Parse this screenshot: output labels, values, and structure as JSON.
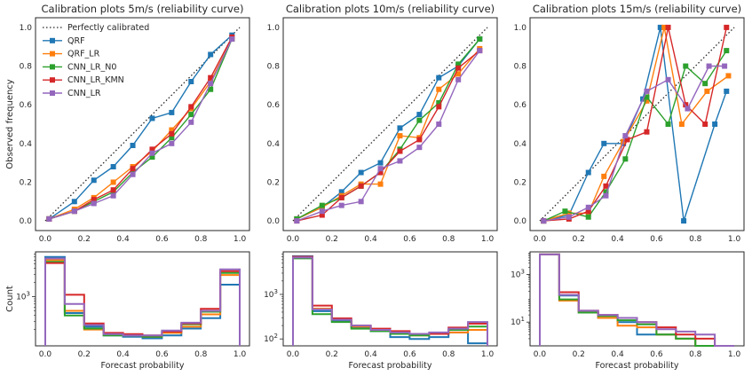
{
  "chart_data": {
    "type": "line",
    "model_colors": {
      "QRF": "#1f77b4",
      "QRF_LR": "#ff7f0e",
      "CNN_LR_N0": "#2ca02c",
      "CNN_LR_KMN": "#d62728",
      "CNN_LR": "#9467bd"
    },
    "reference": {
      "label": "Perfectly calibrated",
      "color": "#262626"
    },
    "legend_order": [
      "QRF",
      "QRF_LR",
      "CNN_LR_N0",
      "CNN_LR_KMN",
      "CNN_LR"
    ],
    "common": {
      "top_ylabel": "Observed frequency",
      "bottom_ylabel": "Count",
      "xlabel": "Forecast probability",
      "xticks": [
        0.0,
        0.2,
        0.4,
        0.6,
        0.8,
        1.0
      ],
      "xtick_labels": [
        "0.0",
        "0.2",
        "0.4",
        "0.6",
        "0.8",
        "1.0"
      ],
      "yticks": [
        0.0,
        0.2,
        0.4,
        0.6,
        0.8,
        1.0
      ],
      "ytick_labels": [
        "0.0",
        "0.2",
        "0.4",
        "0.6",
        "0.8",
        "1.0"
      ],
      "xlim": [
        -0.05,
        1.05
      ],
      "ylim": [
        -0.05,
        1.05
      ]
    },
    "panels": [
      {
        "title": "Calibration plots 5m/s  (reliability curve)",
        "calibration": {
          "QRF": {
            "x": [
              0.02,
              0.15,
              0.25,
              0.35,
              0.45,
              0.55,
              0.65,
              0.75,
              0.85,
              0.96
            ],
            "y": [
              0.01,
              0.1,
              0.21,
              0.28,
              0.39,
              0.53,
              0.56,
              0.72,
              0.86,
              0.96
            ]
          },
          "QRF_LR": {
            "x": [
              0.02,
              0.15,
              0.25,
              0.35,
              0.45,
              0.55,
              0.65,
              0.75,
              0.85,
              0.96
            ],
            "y": [
              0.01,
              0.06,
              0.12,
              0.2,
              0.28,
              0.36,
              0.47,
              0.58,
              0.72,
              0.94
            ]
          },
          "CNN_LR_N0": {
            "x": [
              0.02,
              0.15,
              0.25,
              0.35,
              0.45,
              0.55,
              0.65,
              0.75,
              0.85,
              0.96
            ],
            "y": [
              0.01,
              0.05,
              0.1,
              0.15,
              0.25,
              0.33,
              0.43,
              0.55,
              0.68,
              0.94
            ]
          },
          "CNN_LR_KMN": {
            "x": [
              0.02,
              0.15,
              0.25,
              0.35,
              0.45,
              0.55,
              0.65,
              0.75,
              0.85,
              0.96
            ],
            "y": [
              0.01,
              0.05,
              0.11,
              0.16,
              0.27,
              0.37,
              0.45,
              0.59,
              0.74,
              0.95
            ]
          },
          "CNN_LR": {
            "x": [
              0.02,
              0.15,
              0.25,
              0.35,
              0.45,
              0.55,
              0.65,
              0.75,
              0.85,
              0.96
            ],
            "y": [
              0.01,
              0.05,
              0.09,
              0.13,
              0.24,
              0.35,
              0.4,
              0.51,
              0.71,
              0.94
            ]
          }
        },
        "hist": {
          "yscale": "log",
          "ylim": [
            90,
            9000
          ],
          "yticks": [
            1000
          ],
          "ytick_labels": [
            "10^3"
          ],
          "minor_ticks": [
            200,
            300,
            400,
            500,
            600,
            700,
            800,
            900,
            2000,
            3000,
            4000,
            5000,
            6000,
            7000,
            8000
          ],
          "counts": {
            "QRF": [
              7000,
              450,
              230,
              150,
              140,
              130,
              150,
              210,
              350,
              1800
            ],
            "QRF_LR": [
              6000,
              500,
              200,
              160,
              150,
              140,
              170,
              230,
              420,
              2900
            ],
            "CNN_LR_N0": [
              5500,
              400,
              210,
              150,
              150,
              140,
              180,
              260,
              480,
              3200
            ],
            "CNN_LR_KMN": [
              5200,
              1100,
              270,
              170,
              160,
              150,
              180,
              270,
              550,
              3500
            ],
            "CNN_LR": [
              6500,
              700,
              250,
              160,
              150,
              150,
              190,
              280,
              500,
              3800
            ]
          }
        }
      },
      {
        "title": "Calibration plots 10m/s  (reliability curve)",
        "calibration": {
          "QRF": {
            "x": [
              0.02,
              0.15,
              0.25,
              0.35,
              0.45,
              0.55,
              0.65,
              0.75,
              0.85,
              0.96
            ],
            "y": [
              0.01,
              0.07,
              0.15,
              0.25,
              0.3,
              0.48,
              0.55,
              0.74,
              0.8,
              0.94
            ]
          },
          "QRF_LR": {
            "x": [
              0.02,
              0.15,
              0.25,
              0.35,
              0.45,
              0.55,
              0.65,
              0.75,
              0.85,
              0.96
            ],
            "y": [
              0.01,
              0.07,
              0.13,
              0.19,
              0.19,
              0.44,
              0.43,
              0.68,
              0.76,
              0.89
            ]
          },
          "CNN_LR_N0": {
            "x": [
              0.02,
              0.15,
              0.25,
              0.35,
              0.45,
              0.55,
              0.65,
              0.75,
              0.85,
              0.96
            ],
            "y": [
              0.01,
              0.08,
              0.12,
              0.18,
              0.25,
              0.37,
              0.52,
              0.61,
              0.81,
              0.94
            ]
          },
          "CNN_LR_KMN": {
            "x": [
              0.02,
              0.15,
              0.25,
              0.35,
              0.45,
              0.55,
              0.65,
              0.75,
              0.85,
              0.96
            ],
            "y": [
              0.0,
              0.03,
              0.12,
              0.18,
              0.25,
              0.36,
              0.42,
              0.59,
              0.79,
              0.88
            ]
          },
          "CNN_LR": {
            "x": [
              0.02,
              0.15,
              0.25,
              0.35,
              0.45,
              0.55,
              0.65,
              0.75,
              0.85,
              0.96
            ],
            "y": [
              0.0,
              0.05,
              0.08,
              0.1,
              0.27,
              0.31,
              0.38,
              0.5,
              0.73,
              0.88
            ]
          }
        },
        "hist": {
          "yscale": "log",
          "ylim": [
            70,
            9000
          ],
          "yticks": [
            100,
            1000
          ],
          "ytick_labels": [
            "10^2",
            "10^3"
          ],
          "minor_ticks": [
            200,
            300,
            400,
            500,
            600,
            700,
            800,
            900,
            2000,
            3000,
            4000,
            5000,
            6000,
            7000,
            8000
          ],
          "counts": {
            "QRF": [
              7200,
              420,
              250,
              180,
              150,
              110,
              100,
              110,
              140,
              80
            ],
            "QRF_LR": [
              6800,
              480,
              270,
              190,
              160,
              140,
              120,
              130,
              140,
              160
            ],
            "CNN_LR_N0": [
              6400,
              360,
              240,
              170,
              150,
              130,
              120,
              130,
              160,
              190
            ],
            "CNN_LR_KMN": [
              7000,
              560,
              290,
              200,
              170,
              150,
              130,
              130,
              180,
              220
            ],
            "CNN_LR": [
              6700,
              460,
              270,
              200,
              160,
              140,
              130,
              140,
              170,
              240
            ]
          }
        }
      },
      {
        "title": "Calibration plots 15m/s  (reliability curve)",
        "calibration": {
          "QRF": {
            "x": [
              0.02,
              0.15,
              0.25,
              0.33,
              0.43,
              0.53,
              0.62,
              0.74,
              0.9,
              0.96
            ],
            "y": [
              0.0,
              0.03,
              0.25,
              0.4,
              0.4,
              0.63,
              1.0,
              0.0,
              0.5,
              0.67
            ]
          },
          "QRF_LR": {
            "x": [
              0.02,
              0.15,
              0.25,
              0.33,
              0.43,
              0.55,
              0.64,
              0.73,
              0.86,
              0.97
            ],
            "y": [
              0.0,
              0.04,
              0.04,
              0.23,
              0.41,
              0.62,
              1.0,
              0.5,
              0.67,
              0.75
            ]
          },
          "CNN_LR_N0": {
            "x": [
              0.02,
              0.13,
              0.25,
              0.34,
              0.44,
              0.55,
              0.66,
              0.75,
              0.85,
              0.96
            ],
            "y": [
              0.0,
              0.05,
              0.02,
              0.15,
              0.32,
              0.64,
              0.5,
              0.8,
              0.71,
              0.88
            ]
          },
          "CNN_LR_KMN": {
            "x": [
              0.02,
              0.15,
              0.25,
              0.34,
              0.45,
              0.55,
              0.66,
              0.75,
              0.85,
              0.96
            ],
            "y": [
              0.0,
              0.01,
              0.05,
              0.18,
              0.42,
              0.46,
              1.0,
              0.6,
              0.5,
              1.0
            ]
          },
          "CNN_LR": {
            "x": [
              0.02,
              0.15,
              0.25,
              0.34,
              0.44,
              0.55,
              0.66,
              0.76,
              0.87,
              0.95
            ],
            "y": [
              0.0,
              0.02,
              0.07,
              0.13,
              0.44,
              0.67,
              0.73,
              0.58,
              0.8,
              0.8
            ]
          }
        },
        "hist": {
          "yscale": "log",
          "ylim": [
            1,
            9000
          ],
          "yticks": [
            10,
            1000
          ],
          "ytick_labels": [
            "10^1",
            "10^3"
          ],
          "minor_ticks": [
            2,
            3,
            4,
            5,
            6,
            7,
            8,
            9,
            20,
            30,
            40,
            50,
            60,
            70,
            80,
            90,
            200,
            300,
            400,
            500,
            600,
            700,
            800,
            900,
            2000,
            3000,
            4000,
            5000,
            6000,
            7000,
            8000
          ],
          "counts": {
            "QRF": [
              7000,
              130,
              25,
              15,
              10,
              3,
              3,
              2,
              1,
              1
            ],
            "QRF_LR": [
              7000,
              80,
              25,
              15,
              7,
              6,
              3,
              2,
              1,
              1
            ],
            "CNN_LR_N0": [
              7000,
              90,
              25,
              18,
              12,
              8,
              3,
              2,
              1,
              1
            ],
            "CNN_LR_KMN": [
              7000,
              180,
              30,
              20,
              15,
              10,
              6,
              3,
              2,
              1
            ],
            "CNN_LR": [
              7000,
              140,
              30,
              20,
              15,
              10,
              5,
              4,
              3,
              1
            ]
          }
        }
      }
    ]
  }
}
